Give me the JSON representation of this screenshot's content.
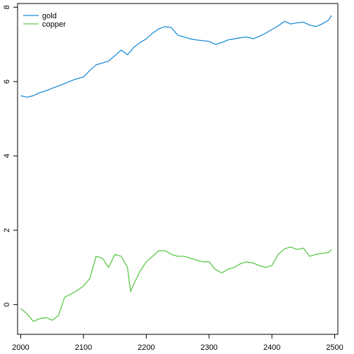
{
  "chart_data": {
    "type": "line",
    "title": "",
    "xlabel": "",
    "ylabel": "",
    "xlim": [
      1995,
      2505
    ],
    "ylim": [
      -0.8,
      8.1
    ],
    "x_ticks": [
      2000,
      2100,
      2200,
      2300,
      2400,
      2500
    ],
    "y_ticks": [
      0,
      2,
      4,
      6,
      8
    ],
    "grid": false,
    "legend_position": "top-left",
    "series": [
      {
        "name": "gold",
        "color": "#1f8dd6",
        "x": [
          2000,
          2010,
          2020,
          2030,
          2040,
          2050,
          2060,
          2070,
          2080,
          2090,
          2100,
          2110,
          2120,
          2130,
          2140,
          2150,
          2160,
          2170,
          2180,
          2190,
          2200,
          2210,
          2220,
          2230,
          2240,
          2250,
          2260,
          2270,
          2280,
          2290,
          2300,
          2310,
          2320,
          2330,
          2340,
          2350,
          2360,
          2370,
          2380,
          2390,
          2400,
          2410,
          2420,
          2430,
          2440,
          2450,
          2460,
          2470,
          2480,
          2490,
          2495
        ],
        "y": [
          5.62,
          5.58,
          5.62,
          5.7,
          5.75,
          5.82,
          5.88,
          5.95,
          6.02,
          6.08,
          6.12,
          6.3,
          6.45,
          6.5,
          6.55,
          6.7,
          6.85,
          6.72,
          6.92,
          7.05,
          7.15,
          7.3,
          7.42,
          7.48,
          7.45,
          7.25,
          7.2,
          7.15,
          7.12,
          7.1,
          7.08,
          7.0,
          7.05,
          7.12,
          7.15,
          7.18,
          7.2,
          7.15,
          7.22,
          7.3,
          7.4,
          7.5,
          7.62,
          7.55,
          7.58,
          7.6,
          7.52,
          7.48,
          7.55,
          7.65,
          7.78
        ]
      },
      {
        "name": "copper",
        "color": "#5cc94a",
        "x": [
          2000,
          2010,
          2020,
          2030,
          2040,
          2050,
          2060,
          2070,
          2080,
          2090,
          2100,
          2110,
          2120,
          2130,
          2140,
          2150,
          2160,
          2170,
          2175,
          2180,
          2190,
          2200,
          2210,
          2220,
          2230,
          2240,
          2250,
          2260,
          2270,
          2280,
          2290,
          2300,
          2310,
          2320,
          2330,
          2340,
          2350,
          2360,
          2370,
          2380,
          2390,
          2400,
          2410,
          2420,
          2430,
          2440,
          2450,
          2460,
          2470,
          2480,
          2490,
          2495
        ],
        "y": [
          -0.1,
          -0.25,
          -0.45,
          -0.38,
          -0.35,
          -0.42,
          -0.3,
          0.2,
          0.28,
          0.38,
          0.5,
          0.7,
          1.3,
          1.25,
          1.0,
          1.35,
          1.3,
          1.0,
          0.35,
          0.55,
          0.9,
          1.15,
          1.3,
          1.45,
          1.45,
          1.35,
          1.3,
          1.3,
          1.25,
          1.2,
          1.15,
          1.15,
          0.95,
          0.85,
          0.95,
          1.0,
          1.1,
          1.15,
          1.12,
          1.05,
          1.0,
          1.05,
          1.35,
          1.5,
          1.55,
          1.48,
          1.52,
          1.3,
          1.35,
          1.38,
          1.4,
          1.48
        ]
      }
    ]
  }
}
